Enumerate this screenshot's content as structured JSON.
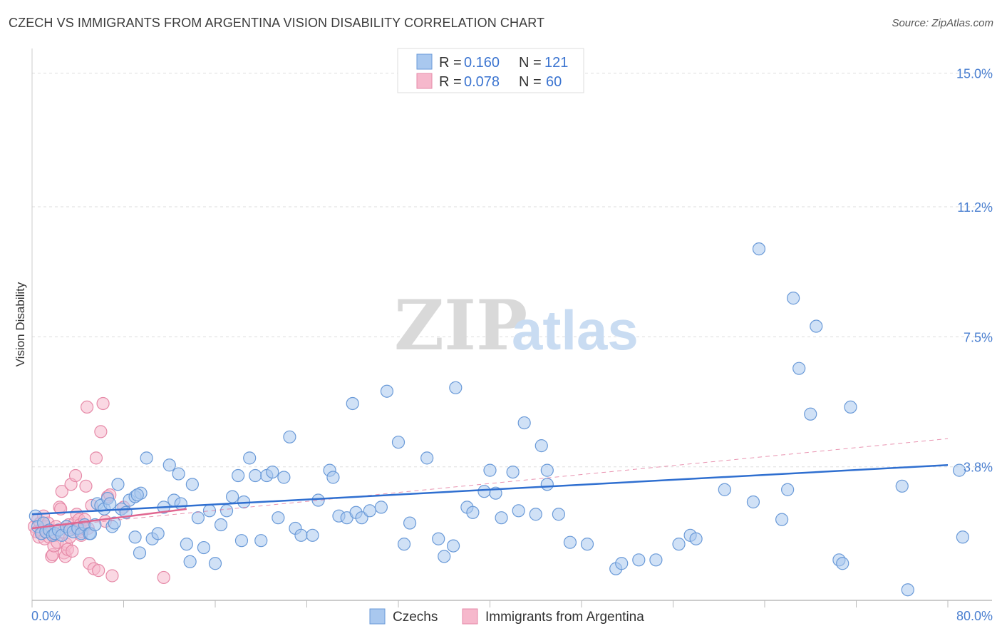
{
  "title": "CZECH VS IMMIGRANTS FROM ARGENTINA VISION DISABILITY CORRELATION CHART",
  "source": "Source: ZipAtlas.com",
  "watermark": {
    "zip": "ZIP",
    "atlas": "atlas"
  },
  "colors": {
    "blue_fill": "#a9c8ef",
    "blue_stroke": "#6a9ad8",
    "blue_line": "#2f6fd0",
    "pink_fill": "#f6b8cc",
    "pink_stroke": "#e68aa8",
    "pink_line": "#e06690",
    "grid": "#dddddd",
    "axis": "#999999",
    "accent_text": "#4a7fd0"
  },
  "legend": {
    "rows": [
      {
        "series": "Czechs",
        "r_label": "R =",
        "r_value": "0.160",
        "n_label": "N =",
        "n_value": "121"
      },
      {
        "series": "Immigrants from Argentina",
        "r_label": "R =",
        "r_value": "0.078",
        "n_label": "N =",
        "n_value": "60"
      }
    ]
  },
  "chart_data": {
    "type": "scatter",
    "title": "CZECH VS IMMIGRANTS FROM ARGENTINA VISION DISABILITY CORRELATION CHART",
    "xlabel": "",
    "ylabel": "Vision Disability",
    "xlim": [
      0,
      80
    ],
    "ylim": [
      0,
      15.5
    ],
    "x_tick_labels": [
      "0.0%",
      "80.0%"
    ],
    "y_ticks": [
      3.8,
      7.5,
      11.2,
      15.0
    ],
    "y_tick_labels": [
      "3.8%",
      "7.5%",
      "11.2%",
      "15.0%"
    ],
    "legend_position": "top-center",
    "series": [
      {
        "name": "Czechs",
        "color": "blue",
        "trend": {
          "x": [
            0,
            80
          ],
          "y": [
            2.45,
            3.85
          ]
        },
        "points": [
          [
            0.3,
            2.4
          ],
          [
            0.5,
            2.1
          ],
          [
            0.8,
            1.9
          ],
          [
            1.0,
            2.2
          ],
          [
            1.2,
            1.95
          ],
          [
            1.5,
            2.0
          ],
          [
            1.8,
            1.85
          ],
          [
            2.0,
            1.9
          ],
          [
            2.3,
            2.0
          ],
          [
            2.6,
            1.85
          ],
          [
            3.0,
            2.1
          ],
          [
            3.3,
            2.0
          ],
          [
            3.6,
            1.95
          ],
          [
            4.0,
            2.05
          ],
          [
            4.3,
            1.9
          ],
          [
            4.6,
            2.15
          ],
          [
            5.0,
            1.9
          ],
          [
            5.1,
            1.9
          ],
          [
            5.5,
            2.15
          ],
          [
            5.7,
            2.75
          ],
          [
            6.0,
            2.7
          ],
          [
            6.3,
            2.6
          ],
          [
            6.6,
            2.9
          ],
          [
            6.8,
            2.75
          ],
          [
            7.0,
            2.1
          ],
          [
            7.2,
            2.2
          ],
          [
            7.5,
            3.3
          ],
          [
            7.8,
            2.6
          ],
          [
            8.2,
            2.5
          ],
          [
            8.5,
            2.85
          ],
          [
            9.0,
            2.95
          ],
          [
            9.5,
            3.05
          ],
          [
            9.0,
            1.8
          ],
          [
            9.4,
            1.35
          ],
          [
            9.2,
            3.0
          ],
          [
            10.0,
            4.05
          ],
          [
            10.5,
            1.75
          ],
          [
            11.0,
            1.9
          ],
          [
            11.5,
            2.65
          ],
          [
            12.0,
            3.85
          ],
          [
            12.4,
            2.85
          ],
          [
            12.8,
            3.6
          ],
          [
            13.0,
            2.75
          ],
          [
            13.5,
            1.6
          ],
          [
            13.8,
            1.1
          ],
          [
            14.0,
            3.3
          ],
          [
            14.5,
            2.35
          ],
          [
            15.0,
            1.5
          ],
          [
            15.5,
            2.55
          ],
          [
            16.0,
            1.05
          ],
          [
            16.5,
            2.15
          ],
          [
            17.0,
            2.55
          ],
          [
            17.5,
            2.95
          ],
          [
            18.0,
            3.55
          ],
          [
            18.5,
            2.8
          ],
          [
            18.3,
            1.7
          ],
          [
            19.0,
            4.05
          ],
          [
            19.5,
            3.55
          ],
          [
            20.0,
            1.7
          ],
          [
            20.5,
            3.55
          ],
          [
            21.0,
            3.65
          ],
          [
            21.5,
            2.35
          ],
          [
            22.0,
            3.5
          ],
          [
            22.5,
            4.65
          ],
          [
            23.0,
            2.05
          ],
          [
            23.5,
            1.85
          ],
          [
            24.5,
            1.85
          ],
          [
            25.0,
            2.85
          ],
          [
            26.0,
            3.7
          ],
          [
            26.3,
            3.5
          ],
          [
            26.8,
            2.4
          ],
          [
            27.5,
            2.35
          ],
          [
            28.0,
            5.6
          ],
          [
            28.3,
            2.5
          ],
          [
            28.8,
            2.35
          ],
          [
            29.5,
            2.55
          ],
          [
            30.5,
            2.65
          ],
          [
            31.0,
            5.95
          ],
          [
            32.0,
            4.5
          ],
          [
            32.5,
            1.6
          ],
          [
            33.0,
            2.2
          ],
          [
            34.5,
            4.05
          ],
          [
            35.5,
            1.75
          ],
          [
            36.0,
            1.25
          ],
          [
            36.8,
            1.55
          ],
          [
            37.0,
            6.05
          ],
          [
            38.0,
            2.65
          ],
          [
            38.5,
            2.5
          ],
          [
            39.5,
            3.1
          ],
          [
            40.0,
            3.7
          ],
          [
            40.5,
            3.05
          ],
          [
            41.0,
            2.35
          ],
          [
            42.0,
            3.65
          ],
          [
            42.5,
            2.55
          ],
          [
            43.0,
            5.05
          ],
          [
            44.0,
            2.45
          ],
          [
            44.5,
            4.4
          ],
          [
            45.0,
            3.3
          ],
          [
            45.0,
            3.7
          ],
          [
            46.0,
            2.45
          ],
          [
            47.0,
            1.65
          ],
          [
            48.5,
            1.6
          ],
          [
            51.0,
            0.9
          ],
          [
            51.5,
            1.05
          ],
          [
            53.0,
            1.15
          ],
          [
            54.5,
            1.15
          ],
          [
            56.5,
            1.6
          ],
          [
            57.5,
            1.85
          ],
          [
            58.0,
            1.75
          ],
          [
            60.5,
            3.15
          ],
          [
            63.0,
            2.8
          ],
          [
            65.5,
            2.3
          ],
          [
            66.0,
            3.15
          ],
          [
            67.0,
            6.6
          ],
          [
            68.0,
            5.3
          ],
          [
            70.5,
            1.15
          ],
          [
            70.8,
            1.05
          ],
          [
            71.5,
            5.5
          ],
          [
            76.0,
            3.25
          ],
          [
            76.5,
            0.3
          ],
          [
            81.0,
            3.7
          ],
          [
            81.3,
            1.8
          ],
          [
            63.5,
            10.0
          ],
          [
            66.5,
            8.6
          ],
          [
            68.5,
            7.8
          ]
        ]
      },
      {
        "name": "Immigrants from Argentina",
        "color": "pink",
        "trend": {
          "x": [
            0,
            13.5
          ],
          "y": [
            2.05,
            2.6
          ]
        },
        "trend_extended": {
          "x": [
            0,
            80
          ],
          "y": [
            2.05,
            4.6
          ]
        },
        "points": [
          [
            0.2,
            2.1
          ],
          [
            0.4,
            1.95
          ],
          [
            0.5,
            2.3
          ],
          [
            0.6,
            1.8
          ],
          [
            0.7,
            2.2
          ],
          [
            0.8,
            2.0
          ],
          [
            0.9,
            1.9
          ],
          [
            1.0,
            2.4
          ],
          [
            1.1,
            1.75
          ],
          [
            1.2,
            2.1
          ],
          [
            1.3,
            1.95
          ],
          [
            1.4,
            2.2
          ],
          [
            1.5,
            1.8
          ],
          [
            1.6,
            2.0
          ],
          [
            1.7,
            1.25
          ],
          [
            1.8,
            1.3
          ],
          [
            1.9,
            1.55
          ],
          [
            2.0,
            1.85
          ],
          [
            2.1,
            2.1
          ],
          [
            2.2,
            1.65
          ],
          [
            2.3,
            2.0
          ],
          [
            2.4,
            2.65
          ],
          [
            2.5,
            2.6
          ],
          [
            2.6,
            3.1
          ],
          [
            2.7,
            1.95
          ],
          [
            2.8,
            1.35
          ],
          [
            2.9,
            1.25
          ],
          [
            3.0,
            1.6
          ],
          [
            3.1,
            1.45
          ],
          [
            3.2,
            2.15
          ],
          [
            3.3,
            1.8
          ],
          [
            3.4,
            3.3
          ],
          [
            3.5,
            1.4
          ],
          [
            3.6,
            2.05
          ],
          [
            3.7,
            2.2
          ],
          [
            3.8,
            3.55
          ],
          [
            3.9,
            2.45
          ],
          [
            4.0,
            2.0
          ],
          [
            4.1,
            2.3
          ],
          [
            4.2,
            2.15
          ],
          [
            4.3,
            1.85
          ],
          [
            4.4,
            1.95
          ],
          [
            4.5,
            2.05
          ],
          [
            4.6,
            2.3
          ],
          [
            4.7,
            3.25
          ],
          [
            4.8,
            5.5
          ],
          [
            4.9,
            2.05
          ],
          [
            5.0,
            1.05
          ],
          [
            5.2,
            2.7
          ],
          [
            5.4,
            0.9
          ],
          [
            5.6,
            4.05
          ],
          [
            5.8,
            0.85
          ],
          [
            6.0,
            4.8
          ],
          [
            6.2,
            5.6
          ],
          [
            6.4,
            2.25
          ],
          [
            6.6,
            2.95
          ],
          [
            6.8,
            3.0
          ],
          [
            7.0,
            0.7
          ],
          [
            8.0,
            2.65
          ],
          [
            11.5,
            0.65
          ]
        ]
      }
    ]
  },
  "bottom_legend": [
    {
      "label": "Czechs",
      "color": "blue"
    },
    {
      "label": "Immigrants from Argentina",
      "color": "pink"
    }
  ]
}
